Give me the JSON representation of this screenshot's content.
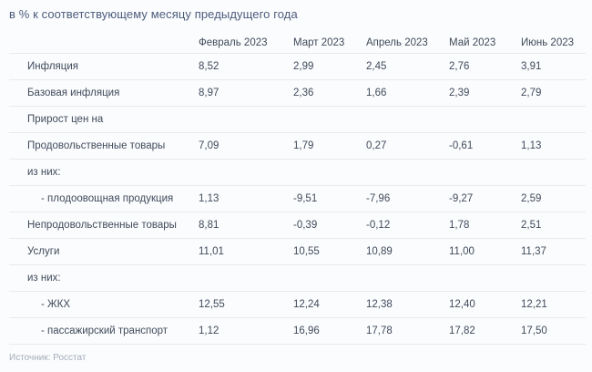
{
  "title": "в % к соответствующему месяцу предыдущего года",
  "source": "Источник: Росстат",
  "colors": {
    "background": "#fbfcfd",
    "title_text": "#4c5c7d",
    "body_text": "#404b5c",
    "muted_text": "#a2acba",
    "divider": "#e8eaee"
  },
  "chart_data": {
    "type": "table",
    "title": "в % к соответствующему месяцу предыдущего года",
    "columns": [
      "",
      "Февраль 2023",
      "Март 2023",
      "Апрель 2023",
      "Май 2023",
      "Июнь 2023"
    ],
    "rows": [
      {
        "label": "Инфляция",
        "indent": 0,
        "values": [
          "8,52",
          "2,99",
          "2,45",
          "2,76",
          "3,91"
        ]
      },
      {
        "label": "Базовая инфляция",
        "indent": 0,
        "values": [
          "8,97",
          "2,36",
          "1,66",
          "2,39",
          "2,79"
        ]
      },
      {
        "label": "Прирост цен на",
        "indent": 0,
        "values": [
          "",
          "",
          "",
          "",
          ""
        ]
      },
      {
        "label": "Продовольственные товары",
        "indent": 0,
        "values": [
          "7,09",
          "1,79",
          "0,27",
          "-0,61",
          "1,13"
        ]
      },
      {
        "label": "из них:",
        "indent": 0,
        "values": [
          "",
          "",
          "",
          "",
          ""
        ]
      },
      {
        "label": "- плодоовощная продукция",
        "indent": 1,
        "values": [
          "1,13",
          "-9,51",
          "-7,96",
          "-9,27",
          "2,59"
        ]
      },
      {
        "label": "Непродовольственные товары",
        "indent": 0,
        "values": [
          "8,81",
          "-0,39",
          "-0,12",
          "1,78",
          "2,51"
        ]
      },
      {
        "label": "Услуги",
        "indent": 0,
        "values": [
          "11,01",
          "10,55",
          "10,89",
          "11,00",
          "11,37"
        ]
      },
      {
        "label": "из них:",
        "indent": 0,
        "values": [
          "",
          "",
          "",
          "",
          ""
        ]
      },
      {
        "label": "- ЖКХ",
        "indent": 1,
        "values": [
          "12,55",
          "12,24",
          "12,38",
          "12,40",
          "12,21"
        ]
      },
      {
        "label": "- пассажирский транспорт",
        "indent": 1,
        "values": [
          "1,12",
          "16,96",
          "17,78",
          "17,82",
          "17,50"
        ]
      }
    ],
    "units": "percent, year-over-year",
    "layout": {
      "grid": "horizontal-hairlines-only",
      "value_alignment": "left"
    }
  }
}
